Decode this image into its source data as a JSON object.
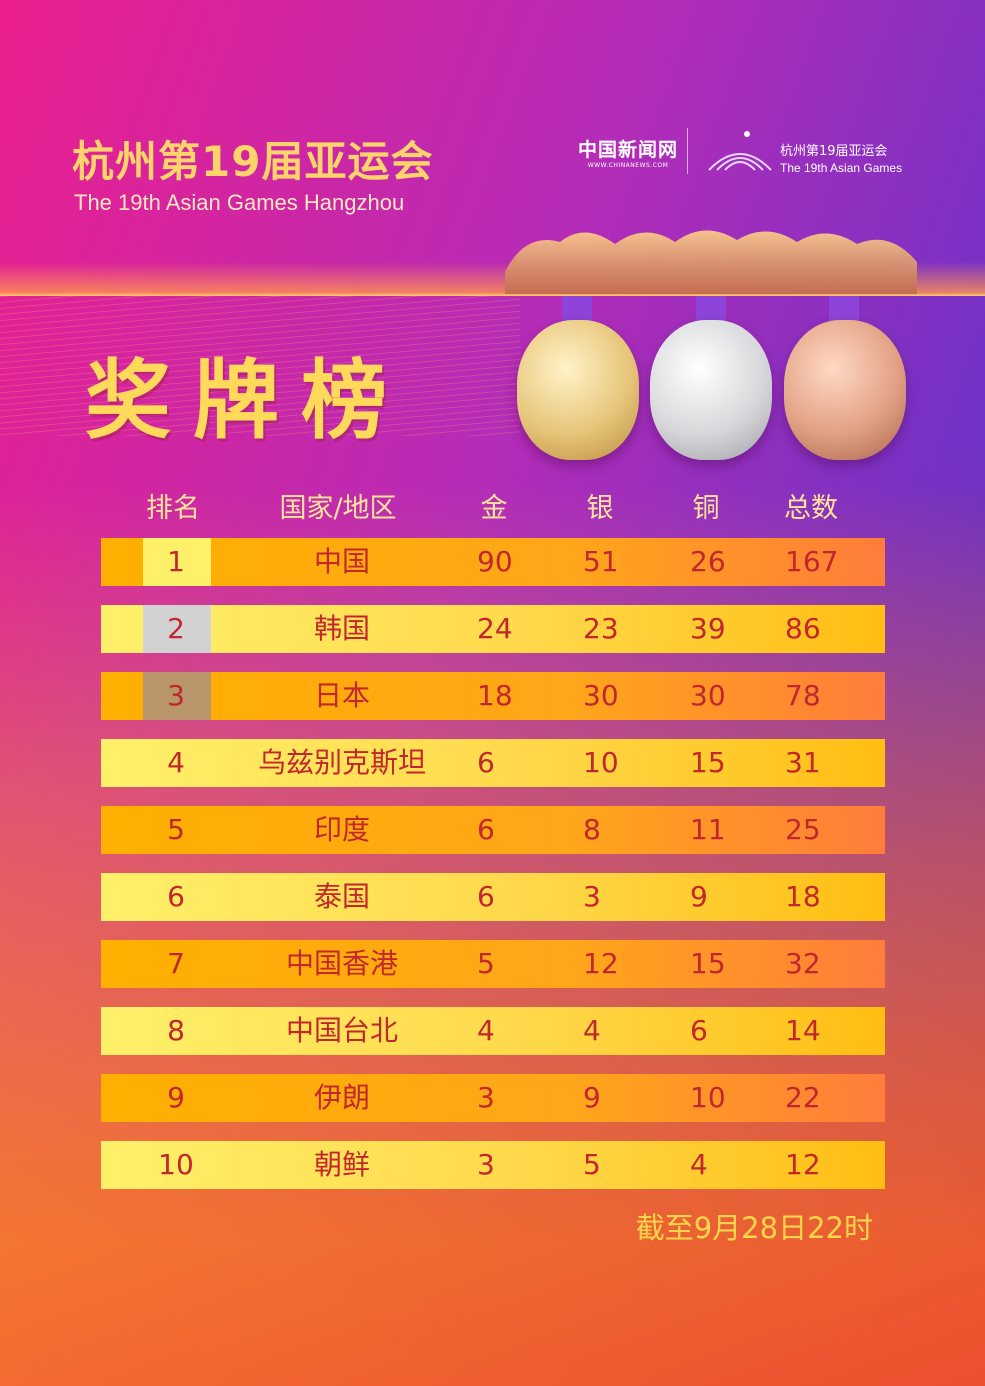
{
  "header": {
    "title_cn": "杭州第19届亚运会",
    "title_en": "The 19th Asian Games Hangzhou",
    "logo_chinanews": "中国新闻网",
    "logo_chinanews_url": "WWW.CHINANEWS.COM",
    "logo_games_cn": "杭州第19届亚运会",
    "logo_games_en": "The 19th Asian Games"
  },
  "big_title": "奖牌榜",
  "table": {
    "columns": [
      "排名",
      "国家/地区",
      "金",
      "银",
      "铜",
      "总数"
    ],
    "rows": [
      {
        "rank": "1",
        "name": "中国",
        "gold": "90",
        "silver": "51",
        "bronze": "26",
        "total": "167"
      },
      {
        "rank": "2",
        "name": "韩国",
        "gold": "24",
        "silver": "23",
        "bronze": "39",
        "total": "86"
      },
      {
        "rank": "3",
        "name": "日本",
        "gold": "18",
        "silver": "30",
        "bronze": "30",
        "total": "78"
      },
      {
        "rank": "4",
        "name": "乌兹别克斯坦",
        "gold": "6",
        "silver": "10",
        "bronze": "15",
        "total": "31"
      },
      {
        "rank": "5",
        "name": "印度",
        "gold": "6",
        "silver": "8",
        "bronze": "11",
        "total": "25"
      },
      {
        "rank": "6",
        "name": "泰国",
        "gold": "6",
        "silver": "3",
        "bronze": "9",
        "total": "18"
      },
      {
        "rank": "7",
        "name": "中国香港",
        "gold": "5",
        "silver": "12",
        "bronze": "15",
        "total": "32"
      },
      {
        "rank": "8",
        "name": "中国台北",
        "gold": "4",
        "silver": "4",
        "bronze": "6",
        "total": "14"
      },
      {
        "rank": "9",
        "name": "伊朗",
        "gold": "3",
        "silver": "9",
        "bronze": "10",
        "total": "22"
      },
      {
        "rank": "10",
        "name": "朝鲜",
        "gold": "3",
        "silver": "5",
        "bronze": "4",
        "total": "12"
      }
    ]
  },
  "rank_colors": {
    "1": "#fff06a",
    "2": "#d2d2d2",
    "3": "#b8956a"
  },
  "footnote": "截至9月28日22时"
}
